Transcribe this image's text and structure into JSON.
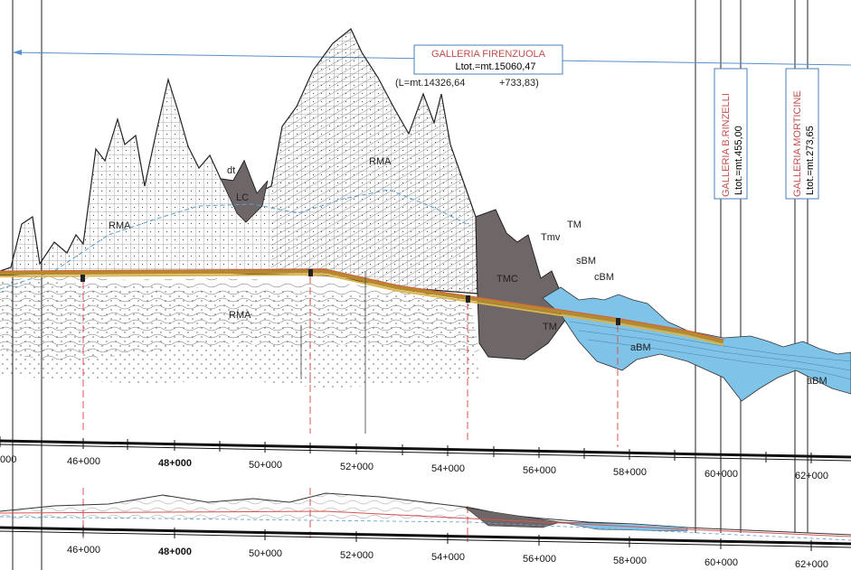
{
  "tunnel_main": {
    "name": "GALLERIA  FIRENZUOLA",
    "length": "Ltot.=mt.15060,47",
    "sub": "(L=mt.14326,64",
    "extra": "+733,83)"
  },
  "tunnel_rinzelli": {
    "name": "GALLERIA  B.RINZELLI",
    "length": "Ltot.=mt.455,00"
  },
  "tunnel_morticine": {
    "name": "GALLERIA  MORTICINE",
    "length": "Ltot.=mt.273,65"
  },
  "geology_labels": {
    "rma_1": "RMA",
    "rma_2": "RMA",
    "rma_3": "RMA",
    "dt": "dt",
    "lc": "LC",
    "tm_1": "TM",
    "tmv": "Tmv",
    "sbm": "sBM",
    "cbm": "cBM",
    "tmc": "TMC",
    "tm_2": "TM",
    "abm_1": "aBM",
    "abm_2": "aBM"
  },
  "colors": {
    "water_blue": "#7fc4e8",
    "dark_rock": "#6f6767",
    "tunnel_axis": "#b7892c",
    "tunnel_label_red": "#c0504d"
  },
  "chainages_upper": [
    "000",
    "46+000",
    "48+000",
    "50+000",
    "52+000",
    "54+000",
    "56+000",
    "58+000",
    "60+000",
    "62+000"
  ],
  "chainages_lower": [
    "46+000",
    "48+000",
    "50+000",
    "52+000",
    "54+000",
    "56+000",
    "58+000",
    "60+000",
    "62+000"
  ]
}
